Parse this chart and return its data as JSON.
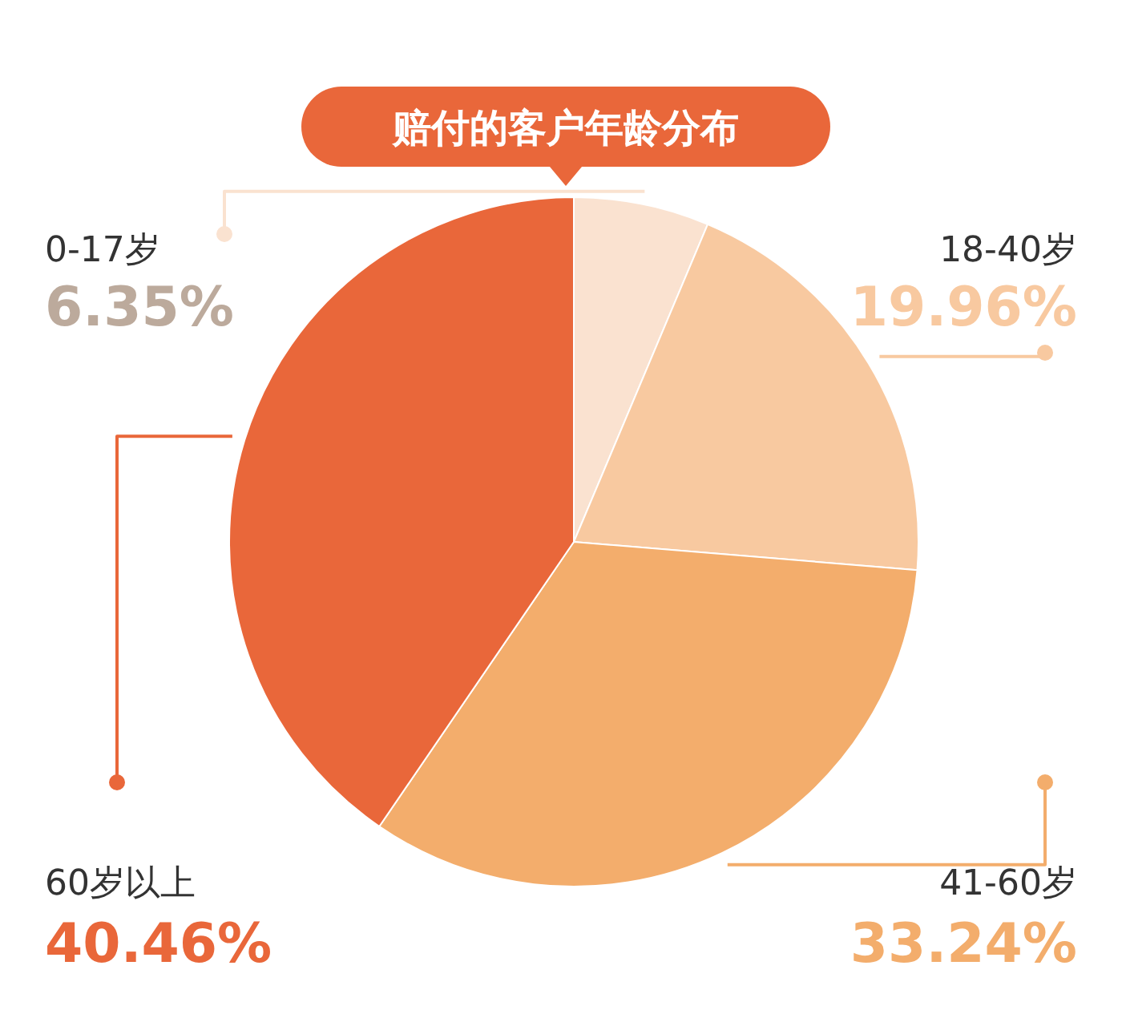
{
  "chart_data": {
    "type": "pie",
    "title": "赔付的客户年龄分布",
    "categories": [
      "0-17岁",
      "18-40岁",
      "41-60岁",
      "60岁以上"
    ],
    "values": [
      6.35,
      19.96,
      33.24,
      40.46
    ],
    "colors": [
      "#fae2d0",
      "#f8c9a0",
      "#f3ad6c",
      "#e9673a"
    ],
    "value_labels": [
      "6.35%",
      "19.96%",
      "33.24%",
      "40.46%"
    ]
  }
}
